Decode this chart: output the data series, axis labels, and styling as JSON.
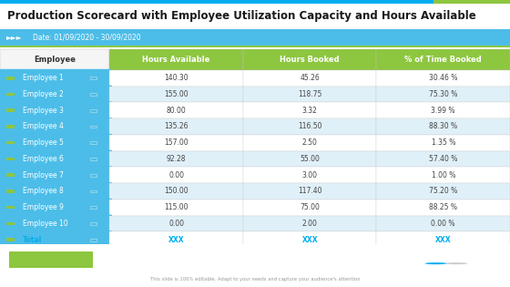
{
  "title": "Production Scorecard with Employee Utilization Capacity and Hours Available",
  "subtitle_arrows": "►►►",
  "subtitle_date": "Date: 01/09/2020 - 30/09/2020",
  "columns": [
    "Employee",
    "Hours Available",
    "Hours Booked",
    "% of Time Booked"
  ],
  "rows": [
    [
      "Employee 1",
      "140.30",
      "45.26",
      "30.46 %"
    ],
    [
      "Employee 2",
      "155.00",
      "118.75",
      "75.30 %"
    ],
    [
      "Employee 3",
      "80.00",
      "3.32",
      "3.99 %"
    ],
    [
      "Employee 4",
      "135.26",
      "116.50",
      "88.30 %"
    ],
    [
      "Employee 5",
      "157.00",
      "2.50",
      "1.35 %"
    ],
    [
      "Employee 6",
      "92.28",
      "55.00",
      "57.40 %"
    ],
    [
      "Employee 7",
      "0.00",
      "3.00",
      "1.00 %"
    ],
    [
      "Employee 8",
      "150.00",
      "117.40",
      "75.20 %"
    ],
    [
      "Employee 9",
      "115.00",
      "75.00",
      "88.25 %"
    ],
    [
      "Employee 10",
      "0.00",
      "2.00",
      "0.00 %"
    ],
    [
      "Total",
      "XXX",
      "XXX",
      "XXX"
    ]
  ],
  "header_bg": "#8DC63F",
  "header_text": "#ffffff",
  "employee_col_bg": "#4CBDE8",
  "employee_col_text": "#ffffff",
  "alt_row_bg": "#E0F0F8",
  "normal_row_bg": "#ffffff",
  "total_row_text": "#00AEEF",
  "title_color": "#1a1a1a",
  "subtitle_bg": "#4CBDE8",
  "subtitle_text": "#ffffff",
  "footer_text": "This slide is 100% editable. Adapt to your needs and capture your audience's attention",
  "dot_color": "#8DC63F",
  "pagination_active": "#00AEEF",
  "pagination_inactive": "#cccccc",
  "top_bar_color": "#00AEEF",
  "top_bar2_color": "#8DC63F",
  "border_color": "#c0c0c0"
}
